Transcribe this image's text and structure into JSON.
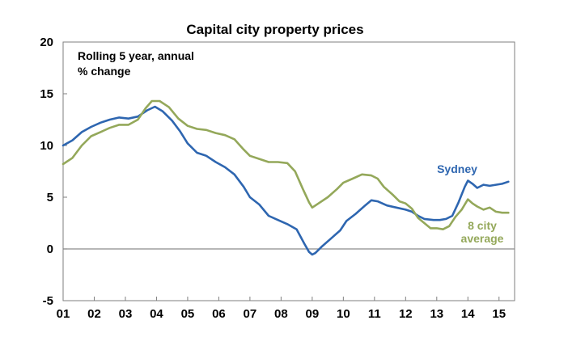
{
  "chart_data": {
    "type": "line",
    "title": "Capital city property prices",
    "annotation_lines": [
      "Rolling 5 year, annual",
      "% change"
    ],
    "xlabel": "",
    "ylabel": "",
    "x_tick_labels": [
      "01",
      "02",
      "03",
      "04",
      "05",
      "06",
      "07",
      "08",
      "09",
      "10",
      "11",
      "12",
      "13",
      "14",
      "15"
    ],
    "x_tick_values": [
      2001,
      2002,
      2003,
      2004,
      2005,
      2006,
      2007,
      2008,
      2009,
      2010,
      2011,
      2012,
      2013,
      2014,
      2015
    ],
    "xlim": [
      2001,
      2015.5
    ],
    "y_tick_values": [
      20,
      15,
      10,
      5,
      0,
      -5
    ],
    "y_tick_labels": [
      "20",
      "15",
      "10",
      "5",
      "0",
      "-5"
    ],
    "ylim": [
      -5,
      20
    ],
    "grid": false,
    "zero_line": true,
    "series": [
      {
        "name": "Sydney",
        "label_lines": [
          "Sydney"
        ],
        "color": "#2e66b0",
        "points": [
          [
            2001.0,
            10.0
          ],
          [
            2001.3,
            10.5
          ],
          [
            2001.6,
            11.3
          ],
          [
            2001.9,
            11.8
          ],
          [
            2002.2,
            12.2
          ],
          [
            2002.5,
            12.5
          ],
          [
            2002.8,
            12.7
          ],
          [
            2003.1,
            12.6
          ],
          [
            2003.4,
            12.8
          ],
          [
            2003.7,
            13.4
          ],
          [
            2003.95,
            13.75
          ],
          [
            2004.2,
            13.3
          ],
          [
            2004.5,
            12.4
          ],
          [
            2004.75,
            11.4
          ],
          [
            2005.0,
            10.2
          ],
          [
            2005.3,
            9.3
          ],
          [
            2005.6,
            9.0
          ],
          [
            2005.9,
            8.4
          ],
          [
            2006.2,
            7.9
          ],
          [
            2006.5,
            7.2
          ],
          [
            2006.8,
            6.0
          ],
          [
            2007.0,
            5.0
          ],
          [
            2007.3,
            4.3
          ],
          [
            2007.6,
            3.2
          ],
          [
            2007.9,
            2.8
          ],
          [
            2008.2,
            2.4
          ],
          [
            2008.5,
            1.9
          ],
          [
            2008.75,
            0.5
          ],
          [
            2008.9,
            -0.3
          ],
          [
            2009.0,
            -0.55
          ],
          [
            2009.1,
            -0.4
          ],
          [
            2009.3,
            0.2
          ],
          [
            2009.6,
            1.0
          ],
          [
            2009.9,
            1.8
          ],
          [
            2010.1,
            2.7
          ],
          [
            2010.4,
            3.4
          ],
          [
            2010.7,
            4.2
          ],
          [
            2010.9,
            4.7
          ],
          [
            2011.1,
            4.6
          ],
          [
            2011.4,
            4.2
          ],
          [
            2011.7,
            4.0
          ],
          [
            2012.0,
            3.8
          ],
          [
            2012.2,
            3.6
          ],
          [
            2012.4,
            3.2
          ],
          [
            2012.6,
            2.9
          ],
          [
            2012.9,
            2.8
          ],
          [
            2013.1,
            2.8
          ],
          [
            2013.3,
            2.9
          ],
          [
            2013.5,
            3.2
          ],
          [
            2013.7,
            4.5
          ],
          [
            2013.9,
            6.0
          ],
          [
            2014.0,
            6.6
          ],
          [
            2014.15,
            6.3
          ],
          [
            2014.3,
            5.9
          ],
          [
            2014.5,
            6.2
          ],
          [
            2014.7,
            6.1
          ],
          [
            2014.9,
            6.2
          ],
          [
            2015.1,
            6.3
          ],
          [
            2015.3,
            6.5
          ]
        ]
      },
      {
        "name": "8 city average",
        "label_lines": [
          "8 city",
          "average"
        ],
        "color": "#94a85a",
        "points": [
          [
            2001.0,
            8.2
          ],
          [
            2001.3,
            8.8
          ],
          [
            2001.6,
            10.0
          ],
          [
            2001.9,
            10.9
          ],
          [
            2002.2,
            11.3
          ],
          [
            2002.5,
            11.7
          ],
          [
            2002.8,
            12.0
          ],
          [
            2003.1,
            12.0
          ],
          [
            2003.4,
            12.5
          ],
          [
            2003.65,
            13.6
          ],
          [
            2003.85,
            14.3
          ],
          [
            2004.1,
            14.3
          ],
          [
            2004.4,
            13.7
          ],
          [
            2004.7,
            12.6
          ],
          [
            2005.0,
            11.9
          ],
          [
            2005.3,
            11.6
          ],
          [
            2005.6,
            11.5
          ],
          [
            2005.9,
            11.2
          ],
          [
            2006.2,
            11.0
          ],
          [
            2006.5,
            10.6
          ],
          [
            2006.8,
            9.6
          ],
          [
            2007.0,
            9.0
          ],
          [
            2007.3,
            8.7
          ],
          [
            2007.6,
            8.4
          ],
          [
            2007.9,
            8.4
          ],
          [
            2008.2,
            8.3
          ],
          [
            2008.45,
            7.5
          ],
          [
            2008.7,
            5.8
          ],
          [
            2008.9,
            4.5
          ],
          [
            2009.0,
            4.0
          ],
          [
            2009.2,
            4.4
          ],
          [
            2009.5,
            5.0
          ],
          [
            2009.8,
            5.8
          ],
          [
            2010.0,
            6.4
          ],
          [
            2010.3,
            6.8
          ],
          [
            2010.6,
            7.2
          ],
          [
            2010.9,
            7.1
          ],
          [
            2011.1,
            6.8
          ],
          [
            2011.3,
            6.0
          ],
          [
            2011.6,
            5.2
          ],
          [
            2011.8,
            4.6
          ],
          [
            2012.0,
            4.4
          ],
          [
            2012.2,
            3.9
          ],
          [
            2012.4,
            3.0
          ],
          [
            2012.6,
            2.5
          ],
          [
            2012.8,
            2.0
          ],
          [
            2013.0,
            2.0
          ],
          [
            2013.2,
            1.9
          ],
          [
            2013.4,
            2.2
          ],
          [
            2013.6,
            3.1
          ],
          [
            2013.8,
            3.8
          ],
          [
            2014.0,
            4.8
          ],
          [
            2014.15,
            4.4
          ],
          [
            2014.3,
            4.1
          ],
          [
            2014.5,
            3.8
          ],
          [
            2014.7,
            4.0
          ],
          [
            2014.9,
            3.6
          ],
          [
            2015.1,
            3.5
          ],
          [
            2015.3,
            3.5
          ]
        ]
      }
    ]
  }
}
